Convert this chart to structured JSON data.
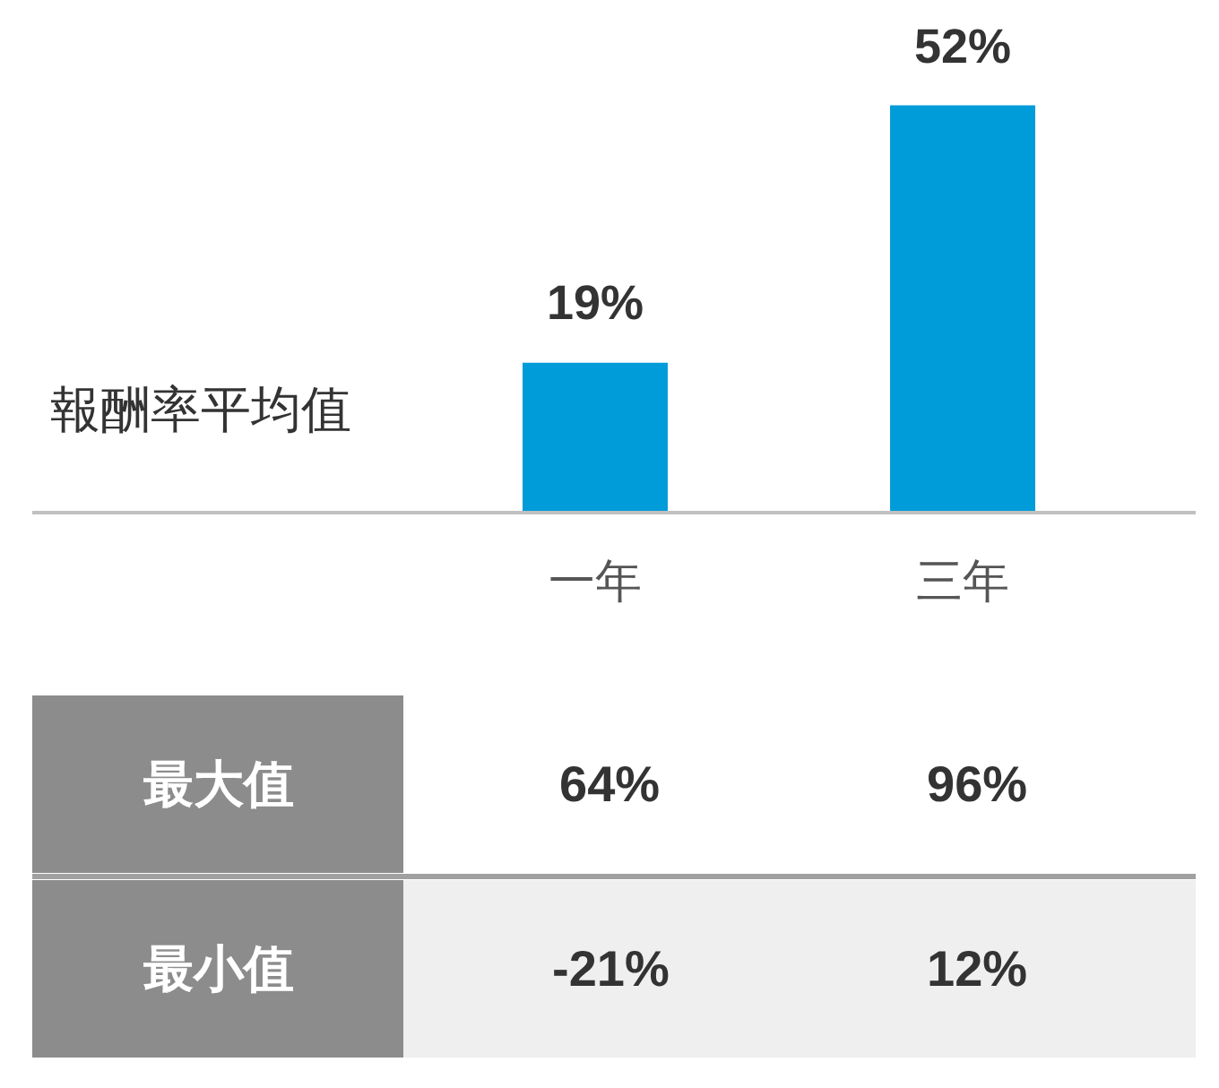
{
  "chart_data": [
    {
      "type": "bar",
      "ylabel": "報酬率平均值",
      "categories": [
        "一年",
        "三年"
      ],
      "values": [
        19,
        52
      ],
      "color": "#009bd9",
      "value_labels": [
        "19%",
        "52%"
      ]
    },
    {
      "type": "heatmap",
      "categories": [
        null,
        null
      ],
      "y_categories": [
        "最大值",
        "最小值"
      ],
      "cells": [
        [
          64,
          96
        ],
        [
          -21,
          12
        ]
      ],
      "cell_labels": [
        [
          "64%",
          "96%"
        ],
        [
          "-21%",
          "12%"
        ]
      ]
    }
  ]
}
